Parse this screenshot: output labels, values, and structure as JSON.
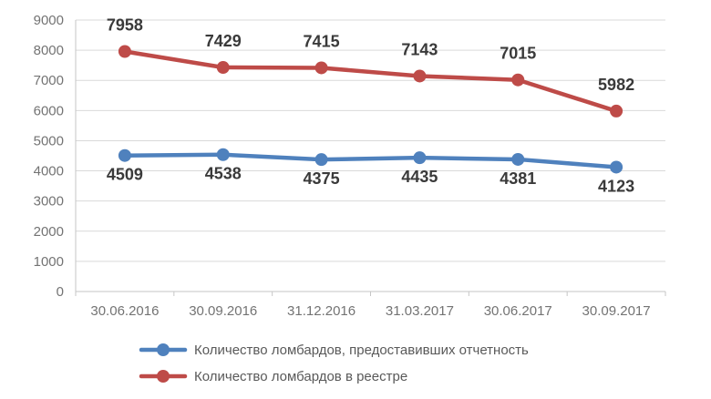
{
  "chart_data": {
    "type": "line",
    "title": "",
    "xlabel": "",
    "ylabel": "",
    "categories": [
      "30.06.2016",
      "30.09.2016",
      "31.12.2016",
      "31.03.2017",
      "30.06.2017",
      "30.09.2017"
    ],
    "series": [
      {
        "name": "Количество ломбардов, предоставивших отчетность",
        "color": "#4F81BD",
        "values": [
          4509,
          4538,
          4375,
          4435,
          4381,
          4123
        ],
        "label_position": "below"
      },
      {
        "name": "Количество ломбардов в реестре",
        "color": "#BE4B48",
        "values": [
          7958,
          7429,
          7415,
          7143,
          7015,
          5982
        ],
        "label_position": "above"
      }
    ],
    "ylim": [
      0,
      9000
    ],
    "ytick_step": 1000,
    "ytick_labels": [
      "0",
      "1000",
      "2000",
      "3000",
      "4000",
      "5000",
      "6000",
      "7000",
      "8000",
      "9000"
    ],
    "grid": true,
    "legend_position": "bottom-left",
    "legend_order": [
      "Количество ломбардов, предоставивших отчетность",
      "Количество ломбардов в реестре"
    ],
    "colors": {
      "background": "#ffffff",
      "gridline": "#D9D9D9",
      "axis_line": "#C6C6C6",
      "tick_label": "#737373",
      "data_label": "#3A3A3A",
      "legend_text": "#595959",
      "series_blue": "#4F81BD",
      "series_red": "#BE4B48"
    }
  }
}
